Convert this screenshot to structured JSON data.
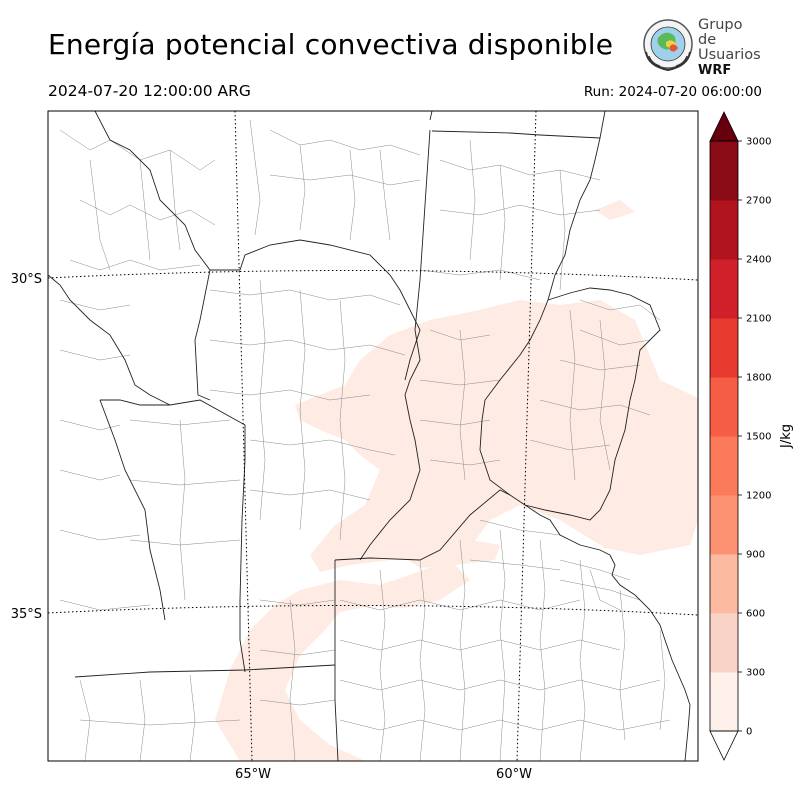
{
  "header": {
    "title": "Energía potencial convectiva disponible",
    "valid_time": "2024-07-20 12:00:00 ARG",
    "run_time": "Run: 2024-07-20 06:00:00"
  },
  "logo": {
    "line1": "Grupo de",
    "line2": "Usuarios",
    "line3": "WRF"
  },
  "map": {
    "lat_labels": [
      "30°S",
      "35°S"
    ],
    "lon_labels": [
      "65°W",
      "60°W"
    ],
    "fill_color": "#fdebe4"
  },
  "colorbar": {
    "label": "J/kg",
    "ticks": [
      "0",
      "300",
      "600",
      "900",
      "1200",
      "1500",
      "1800",
      "2100",
      "2400",
      "2700",
      "3000"
    ],
    "colors": [
      "#fef0eb",
      "#f9d4c6",
      "#fcbba1",
      "#fc9272",
      "#fb7a5a",
      "#f65d45",
      "#e93a2f",
      "#d0202a",
      "#b0151f",
      "#8a0b16"
    ],
    "under_color": "#ffffff",
    "over_color": "#67000d"
  }
}
